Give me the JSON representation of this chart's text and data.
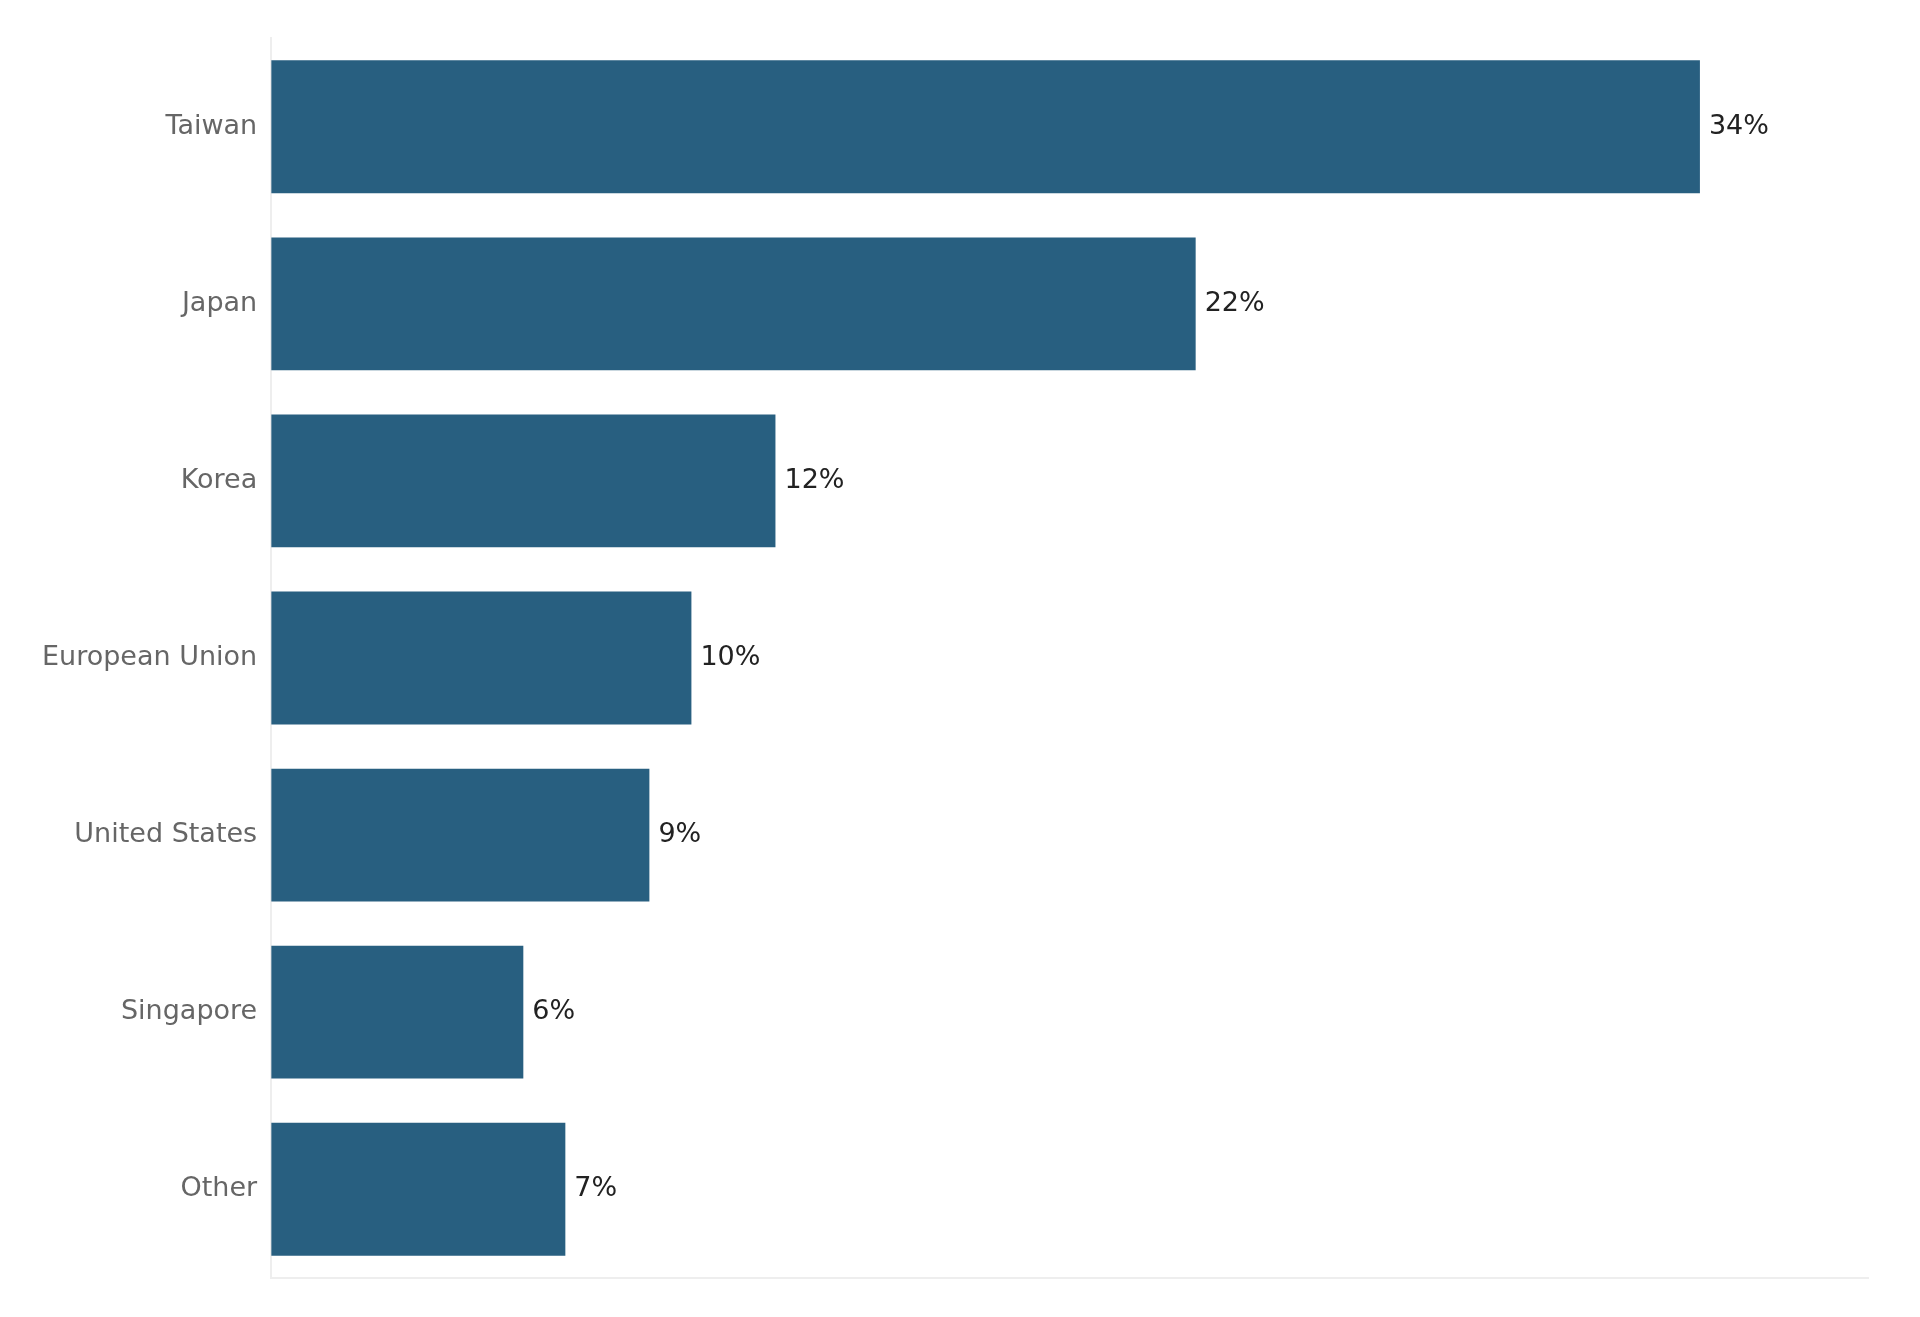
{
  "chart_data": {
    "type": "bar",
    "orientation": "horizontal",
    "categories": [
      "Taiwan",
      "Japan",
      "Korea",
      "European Union",
      "United States",
      "Singapore",
      "Other"
    ],
    "values": [
      34,
      22,
      12,
      10,
      9,
      6,
      7
    ],
    "value_labels": [
      "34%",
      "22%",
      "12%",
      "10%",
      "9%",
      "6%",
      "7%"
    ],
    "color": "#285f80",
    "xlim": [
      0,
      38
    ],
    "tick_labels": "y",
    "grid": false,
    "legend": false
  }
}
